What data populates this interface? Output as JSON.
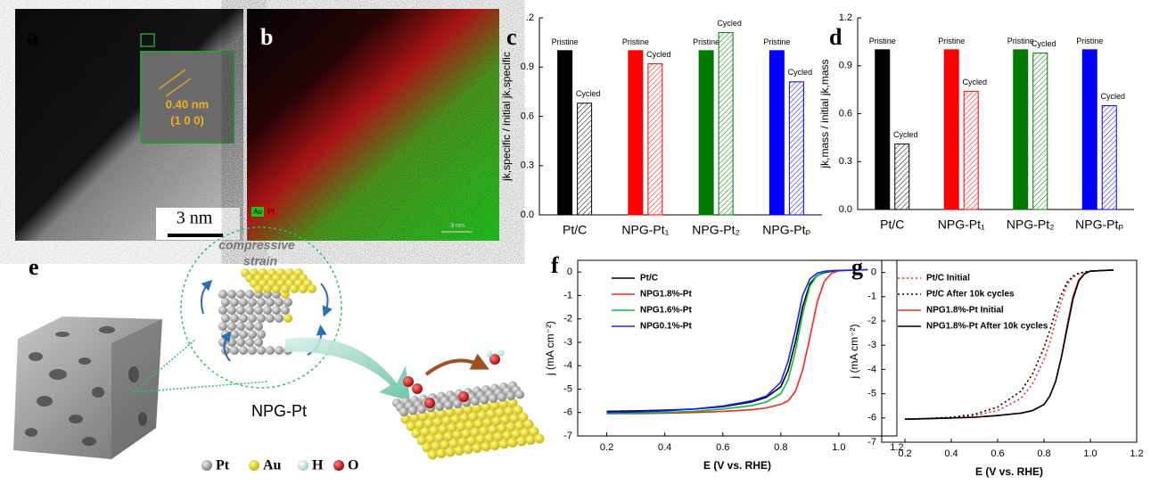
{
  "images": {
    "a": {
      "panel_label": "a",
      "spacing": "0.40 nm",
      "plane": "(1 0 0)",
      "scale": "3 nm"
    },
    "b": {
      "panel_label": "b",
      "legend": [
        "Au",
        "Pt"
      ],
      "scale": "3 nm"
    },
    "e": {
      "panel_label": "e",
      "strain": [
        "compressive",
        "strain"
      ],
      "name": "NPG-Pt",
      "legend": [
        "Pt",
        "Au",
        "H",
        "O"
      ]
    }
  },
  "chart_data": [
    {
      "type": "bar",
      "panel_label": "c",
      "ylabel": "jk,specific / initial jk,specific",
      "categories": [
        "Pt/C",
        "NPG-Pt₁",
        "NPG-Pt₂",
        "NPG-Ptₚ"
      ],
      "colors": [
        "#000000",
        "#ff0000",
        "#007a00",
        "#0000ff"
      ],
      "series": [
        {
          "name": "Pristine",
          "hatched": false,
          "values": [
            1,
            1,
            1,
            1
          ]
        },
        {
          "name": "Cycled",
          "hatched": true,
          "values": [
            0.68,
            0.92,
            1.11,
            0.81
          ]
        }
      ],
      "ylim": [
        0,
        1.2
      ],
      "yticks": [
        {
          "value": 0,
          "label": "0.0"
        },
        0.3,
        0.6,
        0.9,
        {
          "value": 1.2,
          "label": ".2"
        }
      ]
    },
    {
      "type": "bar",
      "panel_label": "d",
      "ylabel": "jk,mass / initial jk,mass",
      "categories": [
        "Pt/C",
        "NPG-Pt₁",
        "NPG-Pt₂",
        "NPG-Ptₚ"
      ],
      "colors": [
        "#000000",
        "#ff0000",
        "#007a00",
        "#0000ff"
      ],
      "series": [
        {
          "name": "Pristine",
          "hatched": false,
          "values": [
            1,
            1,
            1,
            1
          ]
        },
        {
          "name": "Cycled",
          "hatched": true,
          "values": [
            0.41,
            0.74,
            0.98,
            0.65
          ]
        }
      ],
      "ylim": [
        0,
        1.2
      ],
      "yticks": [
        {
          "value": 0,
          "label": "0.0"
        },
        0.3,
        0.6,
        0.9,
        1.2
      ]
    },
    {
      "type": "line",
      "panel_label": "f",
      "xlabel": "E (V vs. RHE)",
      "ylabel": "j (mA cm⁻²)",
      "x": [
        0.2,
        0.3,
        0.4,
        0.5,
        0.6,
        0.7,
        0.75,
        0.8,
        0.825,
        0.85,
        0.875,
        0.9,
        0.925,
        0.95,
        0.975,
        1.0,
        1.05,
        1.1
      ],
      "series": [
        {
          "name": "Pt/C",
          "color": "#000000",
          "style": "solid",
          "values": [
            -5.95,
            -5.93,
            -5.9,
            -5.85,
            -5.75,
            -5.55,
            -5.35,
            -4.9,
            -4.2,
            -3.0,
            -1.5,
            -0.5,
            -0.15,
            -0.03,
            0.03,
            0.06,
            0.08,
            0.1
          ]
        },
        {
          "name": "NPG1.8%-Pt",
          "color": "#ff2020",
          "style": "solid",
          "values": [
            -6.05,
            -6.05,
            -6.03,
            -6.0,
            -5.95,
            -5.88,
            -5.8,
            -5.65,
            -5.5,
            -5.1,
            -4.2,
            -2.8,
            -1.3,
            -0.4,
            -0.05,
            0.05,
            0.08,
            0.1
          ]
        },
        {
          "name": "NPG1.6%-Pt",
          "color": "#00c040",
          "style": "solid",
          "values": [
            -6.05,
            -6.03,
            -6.0,
            -5.95,
            -5.85,
            -5.7,
            -5.55,
            -5.2,
            -4.6,
            -3.4,
            -1.8,
            -0.6,
            -0.15,
            0,
            0.05,
            0.07,
            0.08,
            0.1
          ]
        },
        {
          "name": "NPG0.1%-Pt",
          "color": "#2020ff",
          "style": "solid",
          "values": [
            -6.0,
            -5.98,
            -5.93,
            -5.85,
            -5.72,
            -5.5,
            -5.3,
            -4.7,
            -3.8,
            -2.5,
            -1.0,
            -0.3,
            -0.05,
            0.03,
            0.06,
            0.07,
            0.08,
            0.1
          ]
        }
      ],
      "xlim": [
        0.1,
        1.2
      ],
      "xticks": [
        0.2,
        0.4,
        0.6,
        0.8,
        {
          "value": 1,
          "label": "1.0"
        },
        1.2
      ],
      "ylim": [
        -7,
        0.5
      ],
      "yticks": [
        -7,
        -6,
        -5,
        -4,
        -3,
        -2,
        -1,
        0
      ]
    },
    {
      "type": "line",
      "panel_label": "g",
      "xlabel": "E (V vs. RHE)",
      "ylabel": "j (mA cm⁻²)",
      "x": [
        0.2,
        0.3,
        0.4,
        0.5,
        0.6,
        0.7,
        0.75,
        0.8,
        0.825,
        0.85,
        0.875,
        0.9,
        0.925,
        0.95,
        0.975,
        1.0,
        1.05,
        1.1
      ],
      "series": [
        {
          "name": "Pt/C Initial",
          "color": "#ff2020",
          "style": "dotted",
          "values": [
            -6.05,
            -6.03,
            -6.0,
            -5.9,
            -5.7,
            -5.2,
            -4.6,
            -3.6,
            -2.9,
            -2.0,
            -1.2,
            -0.5,
            -0.2,
            -0.05,
            0.02,
            0.05,
            0.08,
            0.1
          ]
        },
        {
          "name": "Pt/C After 10k cycles",
          "color": "#000000",
          "style": "dotted",
          "values": [
            -6.05,
            -6.02,
            -5.97,
            -5.85,
            -5.55,
            -4.9,
            -4.2,
            -3.1,
            -2.4,
            -1.6,
            -0.9,
            -0.4,
            -0.15,
            -0.03,
            0.02,
            0.05,
            0.08,
            0.1
          ]
        },
        {
          "name": "NPG1.8%-Pt Initial",
          "color": "#ff2020",
          "style": "solid",
          "values": [
            -6.05,
            -6.03,
            -6.0,
            -5.97,
            -5.9,
            -5.8,
            -5.7,
            -5.45,
            -5.1,
            -4.5,
            -3.5,
            -2.2,
            -1.0,
            -0.3,
            -0.05,
            0.05,
            0.08,
            0.1
          ]
        },
        {
          "name": "NPG1.8%-Pt After 10k cycles",
          "color": "#000000",
          "style": "solid",
          "values": [
            -6.05,
            -6.03,
            -6.0,
            -5.97,
            -5.9,
            -5.8,
            -5.7,
            -5.45,
            -5.1,
            -4.5,
            -3.5,
            -2.3,
            -1.1,
            -0.35,
            -0.05,
            0.05,
            0.08,
            0.1
          ]
        }
      ],
      "xlim": [
        0.1,
        1.2
      ],
      "xticks": [
        0.2,
        0.4,
        0.6,
        0.8,
        {
          "value": 1,
          "label": "1.0"
        },
        1.2
      ],
      "ylim": [
        -7,
        0.5
      ],
      "yticks": [
        -7,
        -6,
        -5,
        -4,
        -3,
        -2,
        -1,
        0
      ]
    }
  ]
}
